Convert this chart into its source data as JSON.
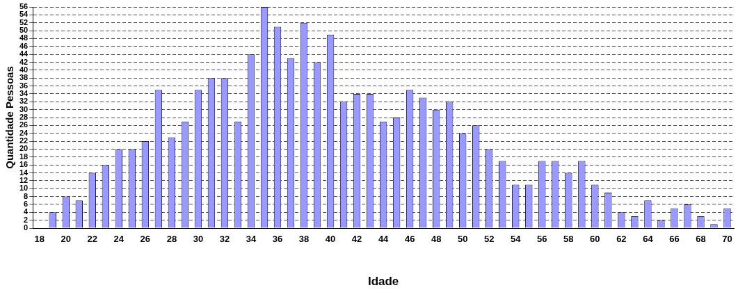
{
  "chart_data": {
    "type": "bar",
    "xlabel": "Idade",
    "ylabel": "Quantidade Pessoas",
    "categories": [
      "18",
      null,
      "20",
      null,
      "22",
      null,
      "24",
      null,
      "26",
      null,
      "28",
      null,
      "30",
      null,
      "32",
      null,
      "34",
      null,
      "36",
      null,
      "38",
      null,
      "40",
      null,
      "42",
      null,
      "44",
      null,
      "46",
      null,
      "48",
      null,
      "50",
      null,
      "52",
      null,
      "54",
      null,
      "56",
      null,
      "58",
      null,
      "60",
      null,
      "62",
      null,
      "64",
      null,
      "66",
      null,
      "68",
      null,
      "70"
    ],
    "values": [
      0,
      4,
      8,
      7,
      14,
      16,
      20,
      20,
      22,
      35,
      23,
      27,
      35,
      38,
      38,
      27,
      44,
      56,
      51,
      43,
      52,
      42,
      49,
      32,
      34,
      34,
      27,
      28,
      35,
      33,
      30,
      32,
      24,
      26,
      20,
      17,
      11,
      11,
      17,
      17,
      14,
      17,
      11,
      9,
      4,
      3,
      7,
      2,
      5,
      6,
      3,
      1,
      5
    ],
    "color": "#9999ff",
    "ylim": [
      0,
      56
    ],
    "yticks": [
      0,
      2,
      4,
      6,
      8,
      10,
      12,
      14,
      16,
      18,
      20,
      22,
      24,
      26,
      28,
      30,
      32,
      34,
      36,
      38,
      40,
      42,
      44,
      46,
      48,
      50,
      52,
      54,
      56
    ],
    "grid": "y"
  }
}
